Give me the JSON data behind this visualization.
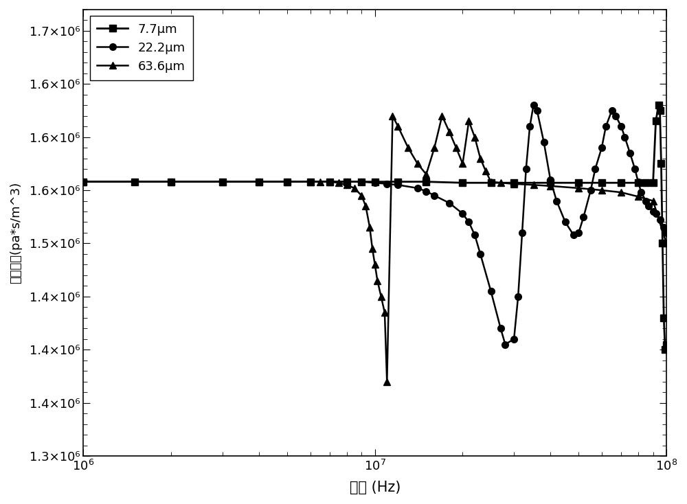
{
  "background_color": "#ffffff",
  "xlabel": "频率 (Hz)",
  "ylabel": "阻抗实部(pa*s/m^3)",
  "xlim": [
    1000000.0,
    100000000.0
  ],
  "ylim": [
    1300000.0,
    1720000.0
  ],
  "legend_labels": [
    "7.7μm",
    "22.2μm",
    "63.6μm"
  ],
  "series_77_x": [
    1000000.0,
    1500000.0,
    2000000.0,
    3000000.0,
    4000000.0,
    5000000.0,
    6000000.0,
    7000000.0,
    8000000.0,
    9000000.0,
    10000000.0,
    12000000.0,
    15000000.0,
    20000000.0,
    25000000.0,
    30000000.0,
    40000000.0,
    50000000.0,
    60000000.0,
    70000000.0,
    80000000.0,
    85000000.0,
    90000000.0,
    92000000.0,
    94000000.0,
    95000000.0,
    96000000.0,
    97000000.0,
    98000000.0,
    99000000.0,
    100000000.0
  ],
  "series_77_y": [
    1558000.0,
    1558000.0,
    1558000.0,
    1558000.0,
    1558000.0,
    1558000.0,
    1558000.0,
    1558000.0,
    1558000.0,
    1558000.0,
    1558000.0,
    1558000.0,
    1558000.0,
    1557000.0,
    1557000.0,
    1557000.0,
    1557000.0,
    1557000.0,
    1557000.0,
    1557000.0,
    1557000.0,
    1557000.0,
    1557000.0,
    1615000.0,
    1630000.0,
    1625000.0,
    1575000.0,
    1500000.0,
    1430000.0,
    1400000.0,
    1405000.0
  ],
  "series_222_x": [
    1000000.0,
    2000000.0,
    3000000.0,
    4000000.0,
    5000000.0,
    6000000.0,
    7000000.0,
    8000000.0,
    9000000.0,
    10000000.0,
    11000000.0,
    12000000.0,
    14000000.0,
    15000000.0,
    16000000.0,
    18000000.0,
    20000000.0,
    21000000.0,
    22000000.0,
    23000000.0,
    25000000.0,
    27000000.0,
    28000000.0,
    30000000.0,
    31000000.0,
    32000000.0,
    33000000.0,
    34000000.0,
    35000000.0,
    36000000.0,
    38000000.0,
    40000000.0,
    42000000.0,
    45000000.0,
    48000000.0,
    50000000.0,
    52000000.0,
    55000000.0,
    57000000.0,
    60000000.0,
    62000000.0,
    65000000.0,
    67000000.0,
    70000000.0,
    72000000.0,
    75000000.0,
    78000000.0,
    80000000.0,
    82000000.0,
    85000000.0,
    87000000.0,
    90000000.0,
    92000000.0,
    95000000.0,
    98000000.0,
    100000000.0
  ],
  "series_222_y": [
    1558000.0,
    1558000.0,
    1558000.0,
    1558000.0,
    1558000.0,
    1558000.0,
    1558000.0,
    1558000.0,
    1558000.0,
    1557000.0,
    1556000.0,
    1555000.0,
    1552000.0,
    1549000.0,
    1545000.0,
    1538000.0,
    1528000.0,
    1520000.0,
    1508000.0,
    1490000.0,
    1455000.0,
    1420000.0,
    1405000.0,
    1410000.0,
    1450000.0,
    1510000.0,
    1570000.0,
    1610000.0,
    1630000.0,
    1625000.0,
    1595000.0,
    1560000.0,
    1540000.0,
    1520000.0,
    1508000.0,
    1510000.0,
    1525000.0,
    1550000.0,
    1570000.0,
    1590000.0,
    1610000.0,
    1625000.0,
    1620000.0,
    1610000.0,
    1600000.0,
    1585000.0,
    1570000.0,
    1558000.0,
    1548000.0,
    1540000.0,
    1535000.0,
    1530000.0,
    1528000.0,
    1522000.0,
    1515000.0,
    1510000.0
  ],
  "series_636_x": [
    1000000.0,
    2000000.0,
    3000000.0,
    4000000.0,
    5000000.0,
    6000000.0,
    6500000.0,
    7000000.0,
    7500000.0,
    8000000.0,
    8500000.0,
    9000000.0,
    9300000.0,
    9600000.0,
    9800000.0,
    10000000.0,
    10200000.0,
    10500000.0,
    10800000.0,
    11000000.0,
    11500000.0,
    12000000.0,
    13000000.0,
    14000000.0,
    15000000.0,
    16000000.0,
    17000000.0,
    18000000.0,
    19000000.0,
    20000000.0,
    21000000.0,
    22000000.0,
    23000000.0,
    24000000.0,
    25000000.0,
    27000000.0,
    30000000.0,
    35000000.0,
    40000000.0,
    50000000.0,
    60000000.0,
    70000000.0,
    80000000.0,
    90000000.0,
    100000000.0
  ],
  "series_636_y": [
    1558000.0,
    1558000.0,
    1558000.0,
    1558000.0,
    1558000.0,
    1558000.0,
    1558000.0,
    1558000.0,
    1557000.0,
    1555000.0,
    1552000.0,
    1545000.0,
    1535000.0,
    1515000.0,
    1495000.0,
    1480000.0,
    1465000.0,
    1450000.0,
    1435000.0,
    1370000.0,
    1620000.0,
    1610000.0,
    1590000.0,
    1575000.0,
    1565000.0,
    1590000.0,
    1620000.0,
    1605000.0,
    1590000.0,
    1575000.0,
    1615000.0,
    1600000.0,
    1580000.0,
    1568000.0,
    1558000.0,
    1557000.0,
    1556000.0,
    1555000.0,
    1554000.0,
    1552000.0,
    1550000.0,
    1548000.0,
    1544000.0,
    1540000.0,
    1500000.0
  ]
}
